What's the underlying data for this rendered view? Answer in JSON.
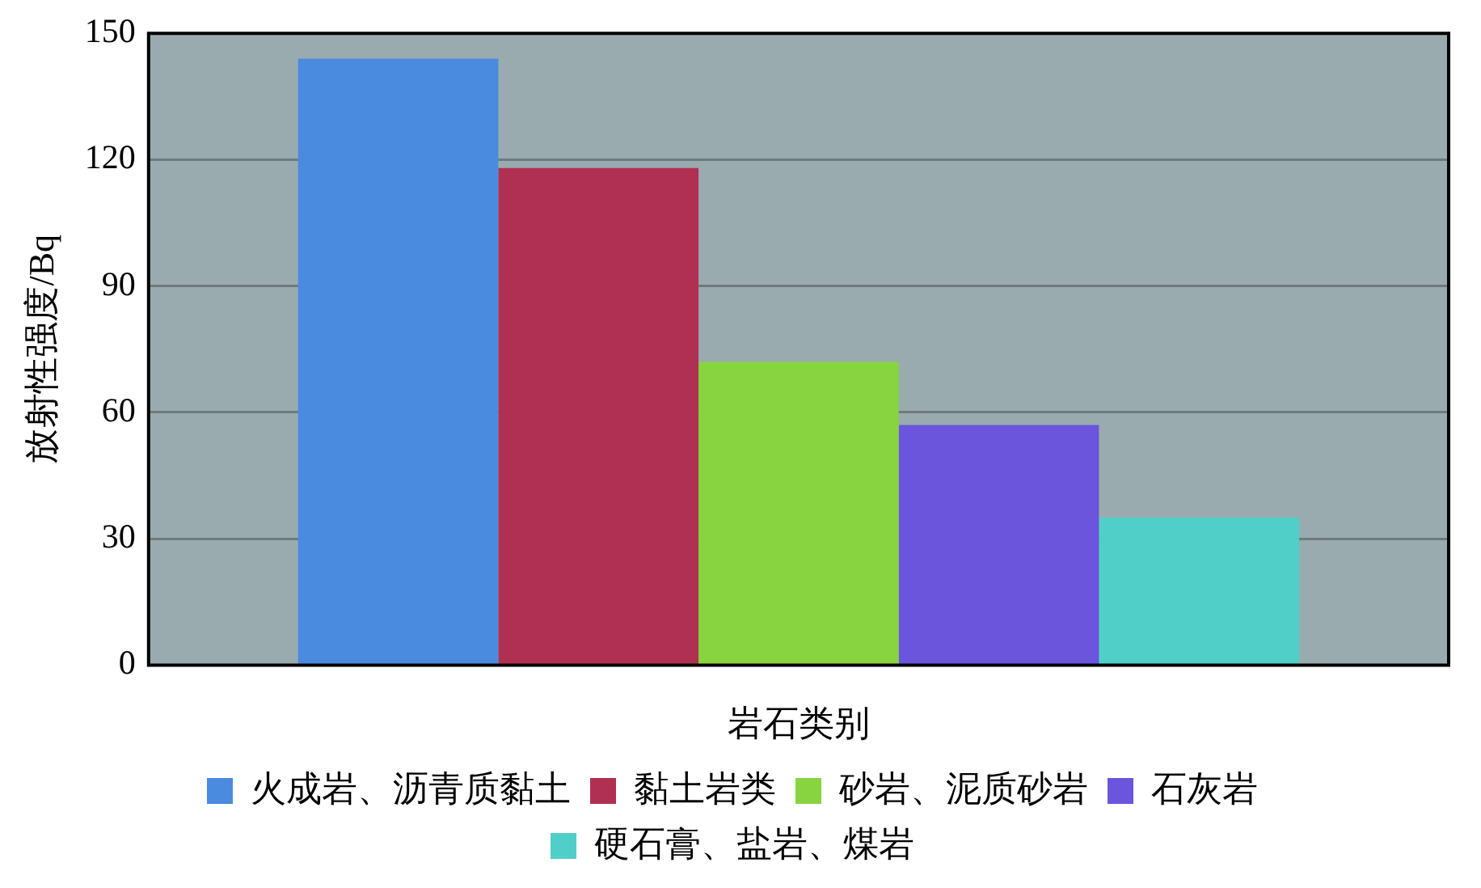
{
  "chart_data": {
    "type": "bar",
    "xlabel": "岩石类别",
    "ylabel": "放射性强度/Bq",
    "categories": [
      null
    ],
    "series": [
      {
        "name": "火成岩、沥青质黏土",
        "color": "#4a8be0",
        "values": [
          144
        ]
      },
      {
        "name": "黏土岩类",
        "color": "#b03052",
        "values": [
          118
        ]
      },
      {
        "name": "砂岩、泥质砂岩",
        "color": "#88d440",
        "values": [
          72
        ]
      },
      {
        "name": "石灰岩",
        "color": "#6a55dc",
        "values": [
          57
        ]
      },
      {
        "name": "硬石膏、盐岩、煤岩",
        "color": "#50cfc8",
        "values": [
          35
        ]
      }
    ],
    "ylim": [
      0,
      150
    ],
    "yticks": [
      0,
      30,
      60,
      90,
      120,
      150
    ],
    "grid": "y",
    "legend": "bottom"
  }
}
